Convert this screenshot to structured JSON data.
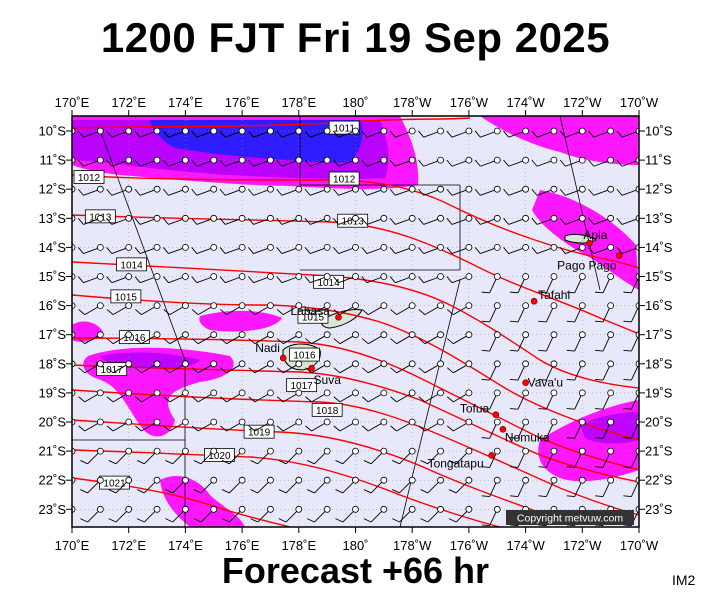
{
  "title": "1200 FJT Fri 19 Sep 2025",
  "footer": "Forecast +66 hr",
  "product_code": "IM2",
  "copyright": "Copyright metvuw.com",
  "colors": {
    "ocean": "#e8e8fb",
    "rain_light": "#ff00ff",
    "rain_mid": "#b400ff",
    "rain_heavy": "#2020ff",
    "isobar": "#ff0000",
    "land": "#d8e8d8",
    "city": "#ff0000"
  },
  "lon_labels": [
    "170˚E",
    "172˚E",
    "174˚E",
    "176˚E",
    "178˚E",
    "180˚",
    "178˚W",
    "176˚W",
    "174˚W",
    "172˚W",
    "170˚W"
  ],
  "lat_labels": [
    "10˚S",
    "11˚S",
    "12˚S",
    "13˚S",
    "14˚S",
    "15˚S",
    "16˚S",
    "17˚S",
    "18˚S",
    "19˚S",
    "20˚S",
    "21˚S",
    "22˚S",
    "23˚S"
  ],
  "cities": [
    {
      "name": "Labasa",
      "lon": 179.4,
      "lat": -16.4
    },
    {
      "name": "Nadi",
      "lon": 177.45,
      "lat": -17.8
    },
    {
      "name": "Suva",
      "lon": 178.45,
      "lat": -18.15
    },
    {
      "name": "Apia",
      "lon": -171.75,
      "lat": -13.85
    },
    {
      "name": "Pago Pago",
      "lon": -170.7,
      "lat": -14.28
    },
    {
      "name": "Tafahi",
      "lon": -173.7,
      "lat": -15.85
    },
    {
      "name": "Vava'u",
      "lon": -174.0,
      "lat": -18.65
    },
    {
      "name": "Tofua",
      "lon": -175.05,
      "lat": -19.75
    },
    {
      "name": "Nomuka",
      "lon": -174.8,
      "lat": -20.25
    },
    {
      "name": "Tongatapu",
      "lon": -175.2,
      "lat": -21.15
    }
  ],
  "isobars": [
    {
      "label": "1011",
      "lon": 179.6,
      "lat": -9.9
    },
    {
      "label": "1012",
      "lon": 170.6,
      "lat": -11.6
    },
    {
      "label": "1012",
      "lon": 179.6,
      "lat": -11.65
    },
    {
      "label": "1013",
      "lon": 171.0,
      "lat": -12.95
    },
    {
      "label": "1013",
      "lon": 179.9,
      "lat": -13.1
    },
    {
      "label": "1014",
      "lon": 172.1,
      "lat": -14.6
    },
    {
      "label": "1014",
      "lon": 179.05,
      "lat": -15.2
    },
    {
      "label": "1015",
      "lon": 171.9,
      "lat": -15.7
    },
    {
      "label": "1015",
      "lon": 178.5,
      "lat": -16.4
    },
    {
      "label": "1016",
      "lon": 172.2,
      "lat": -17.1
    },
    {
      "label": "1016",
      "lon": 178.2,
      "lat": -17.7
    },
    {
      "label": "1017",
      "lon": 171.4,
      "lat": -18.2
    },
    {
      "label": "1017",
      "lon": 178.1,
      "lat": -18.75
    },
    {
      "label": "1018",
      "lon": 179.0,
      "lat": -19.6
    },
    {
      "label": "1019",
      "lon": 176.6,
      "lat": -20.35
    },
    {
      "label": "1020",
      "lon": 175.2,
      "lat": -21.15
    },
    {
      "label": "1021",
      "lon": 171.5,
      "lat": -22.1
    }
  ]
}
